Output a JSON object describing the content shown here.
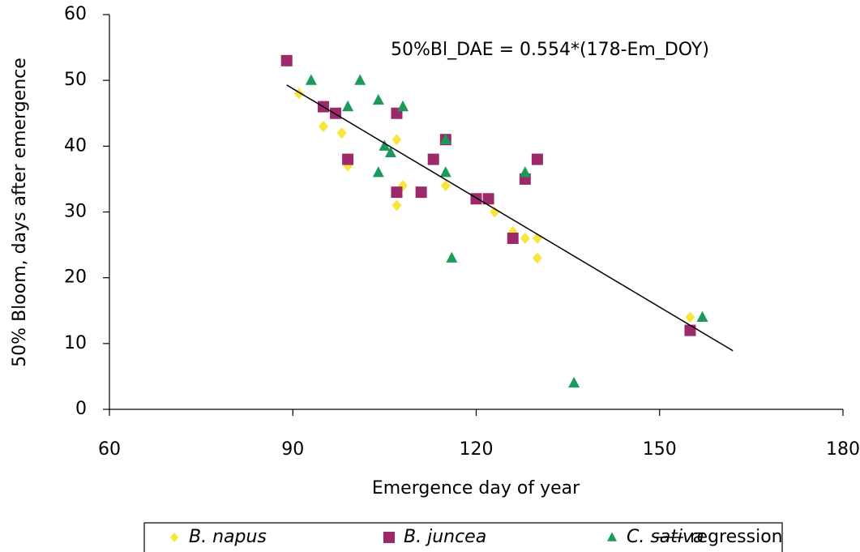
{
  "chart_data": {
    "type": "scatter",
    "xlabel": "Emergence day of year",
    "ylabel": "50% Bloom, days after emergence",
    "annotation": "50%Bl_DAE = 0.554*(178-Em_DOY)",
    "xlim": [
      60,
      180
    ],
    "xticks": [
      60,
      90,
      120,
      150,
      180
    ],
    "ylim": [
      0,
      60
    ],
    "yticks": [
      0,
      10,
      20,
      30,
      40,
      50,
      60
    ],
    "legend": "bottom",
    "series": [
      {
        "name": "B. napus",
        "color": "#f7e53a",
        "marker": "diamond",
        "x": [
          91,
          95,
          98,
          99,
          107,
          107,
          108,
          115,
          123,
          126,
          128,
          130,
          130,
          155
        ],
        "values": [
          48,
          43,
          42,
          37,
          41,
          31,
          34,
          34,
          30,
          27,
          26,
          26,
          23,
          14
        ]
      },
      {
        "name": "B. juncea",
        "color": "#9c2a6a",
        "marker": "square",
        "x": [
          89,
          95,
          97,
          99,
          107,
          107,
          111,
          113,
          115,
          120,
          122,
          126,
          128,
          130,
          155
        ],
        "values": [
          53,
          46,
          45,
          38,
          45,
          33,
          33,
          38,
          41,
          32,
          32,
          26,
          35,
          38,
          12
        ]
      },
      {
        "name": "C. sativa",
        "color": "#1b9a5b",
        "marker": "triangle",
        "x": [
          93,
          99,
          101,
          104,
          108,
          105,
          106,
          104,
          115,
          115,
          116,
          128,
          136,
          157
        ],
        "values": [
          50,
          46,
          50,
          47,
          46,
          40,
          39,
          36,
          41,
          36,
          23,
          36,
          4,
          14
        ]
      },
      {
        "name": "regression",
        "color": "#000000",
        "type": "line",
        "x": [
          89,
          162
        ],
        "values": [
          49.3,
          8.9
        ]
      }
    ]
  }
}
